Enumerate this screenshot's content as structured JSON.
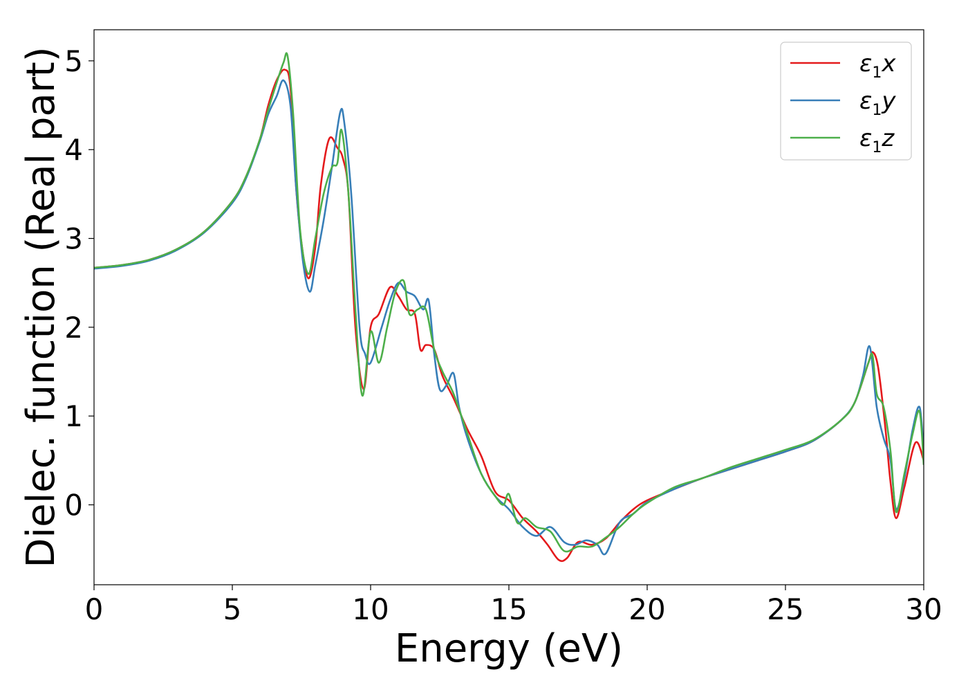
{
  "chart_data": {
    "type": "line",
    "title": "",
    "xlabel": "Energy (eV)",
    "ylabel": "Dielec. function (Real part)",
    "xlim": [
      0,
      30
    ],
    "ylim": [
      -0.9,
      5.35
    ],
    "xticks": [
      0,
      5,
      10,
      15,
      20,
      25,
      30
    ],
    "yticks": [
      0,
      1,
      2,
      3,
      4,
      5
    ],
    "grid": false,
    "legend_position": "top-right",
    "series": [
      {
        "name": "ε1x",
        "symbol": "ε",
        "subscript": "1",
        "suffix": "x",
        "color": "#e41a1c",
        "x": [
          0,
          1,
          2,
          3,
          4,
          5,
          5.5,
          6,
          6.3,
          6.6,
          6.9,
          7.1,
          7.3,
          7.5,
          7.75,
          8,
          8.2,
          8.5,
          8.8,
          9.0,
          9.2,
          9.45,
          9.75,
          10.0,
          10.3,
          10.7,
          11.0,
          11.3,
          11.6,
          11.8,
          12.0,
          12.3,
          12.6,
          13.0,
          13.5,
          14.0,
          14.5,
          15.0,
          15.5,
          16.0,
          16.4,
          16.8,
          17.1,
          17.5,
          18.0,
          18.5,
          19.0,
          19.5,
          20.0,
          21.0,
          22.0,
          23.0,
          24.0,
          25.0,
          26.0,
          27.0,
          27.5,
          28.0,
          28.15,
          28.35,
          28.6,
          28.8,
          29.0,
          29.3,
          29.7,
          30.0
        ],
        "y": [
          2.67,
          2.7,
          2.76,
          2.88,
          3.08,
          3.42,
          3.7,
          4.12,
          4.5,
          4.78,
          4.9,
          4.7,
          3.6,
          2.95,
          2.55,
          2.9,
          3.6,
          4.12,
          4.02,
          3.9,
          3.5,
          2.0,
          1.3,
          2.0,
          2.15,
          2.45,
          2.35,
          2.2,
          2.15,
          1.75,
          1.8,
          1.75,
          1.45,
          1.2,
          0.85,
          0.55,
          0.15,
          0.05,
          -0.15,
          -0.3,
          -0.45,
          -0.62,
          -0.6,
          -0.42,
          -0.45,
          -0.38,
          -0.2,
          -0.05,
          0.05,
          0.18,
          0.3,
          0.4,
          0.5,
          0.6,
          0.72,
          0.95,
          1.15,
          1.6,
          1.72,
          1.55,
          0.9,
          0.25,
          -0.15,
          0.2,
          0.7,
          0.5
        ]
      },
      {
        "name": "ε1y",
        "symbol": "ε",
        "subscript": "1",
        "suffix": "y",
        "color": "#377eb8",
        "x": [
          0,
          1,
          2,
          3,
          4,
          5,
          5.5,
          6,
          6.3,
          6.6,
          6.85,
          7.1,
          7.3,
          7.55,
          7.8,
          8.0,
          8.3,
          8.6,
          8.9,
          9.05,
          9.3,
          9.6,
          9.8,
          10.0,
          10.4,
          10.7,
          11.0,
          11.3,
          11.6,
          11.9,
          12.1,
          12.3,
          12.5,
          12.75,
          13.0,
          13.2,
          13.5,
          14.0,
          14.5,
          15.0,
          15.5,
          16.0,
          16.5,
          17.0,
          17.4,
          17.8,
          18.2,
          18.5,
          19.0,
          19.5,
          20.0,
          21.0,
          22.0,
          23.0,
          24.0,
          25.0,
          26.0,
          27.0,
          27.5,
          27.8,
          28.05,
          28.3,
          28.55,
          28.8,
          29.0,
          29.3,
          29.6,
          29.85,
          30.0
        ],
        "y": [
          2.66,
          2.69,
          2.75,
          2.87,
          3.07,
          3.4,
          3.68,
          4.1,
          4.4,
          4.6,
          4.78,
          4.5,
          3.6,
          2.75,
          2.4,
          2.7,
          3.2,
          3.8,
          4.42,
          4.3,
          3.5,
          2.0,
          1.7,
          1.6,
          2.0,
          2.3,
          2.5,
          2.4,
          2.35,
          2.2,
          2.3,
          1.7,
          1.3,
          1.35,
          1.48,
          1.1,
          0.75,
          0.35,
          0.1,
          -0.05,
          -0.25,
          -0.35,
          -0.25,
          -0.42,
          -0.45,
          -0.4,
          -0.45,
          -0.55,
          -0.2,
          -0.1,
          0.03,
          0.18,
          0.3,
          0.4,
          0.5,
          0.6,
          0.72,
          0.95,
          1.15,
          1.45,
          1.78,
          1.1,
          0.75,
          0.5,
          -0.05,
          0.3,
          0.85,
          1.1,
          0.6
        ]
      },
      {
        "name": "ε1z",
        "symbol": "ε",
        "subscript": "1",
        "suffix": "z",
        "color": "#4daf4a",
        "x": [
          0,
          1,
          2,
          3,
          4,
          5,
          5.5,
          6,
          6.3,
          6.6,
          6.85,
          7.0,
          7.2,
          7.45,
          7.75,
          8.0,
          8.3,
          8.6,
          8.8,
          8.95,
          9.2,
          9.45,
          9.7,
          10.0,
          10.3,
          10.6,
          10.9,
          11.2,
          11.4,
          11.7,
          12.0,
          12.3,
          12.6,
          13.0,
          13.5,
          14.0,
          14.5,
          14.8,
          15.0,
          15.3,
          15.6,
          16.0,
          16.5,
          17.0,
          17.5,
          18.0,
          18.5,
          19.0,
          19.5,
          20.0,
          21.0,
          22.0,
          23.0,
          24.0,
          25.0,
          26.0,
          27.0,
          27.5,
          28.0,
          28.15,
          28.3,
          28.55,
          28.8,
          29.0,
          29.3,
          29.6,
          29.85,
          30.0
        ],
        "y": [
          2.67,
          2.7,
          2.76,
          2.88,
          3.08,
          3.42,
          3.7,
          4.12,
          4.45,
          4.75,
          4.98,
          5.05,
          4.4,
          3.1,
          2.6,
          3.0,
          3.5,
          3.8,
          3.85,
          4.22,
          3.5,
          2.2,
          1.23,
          1.95,
          1.6,
          2.0,
          2.4,
          2.52,
          2.15,
          2.2,
          2.2,
          1.75,
          1.5,
          1.25,
          0.8,
          0.35,
          0.1,
          0.0,
          0.12,
          -0.2,
          -0.15,
          -0.25,
          -0.3,
          -0.52,
          -0.47,
          -0.47,
          -0.37,
          -0.25,
          -0.1,
          0.02,
          0.2,
          0.3,
          0.42,
          0.52,
          0.62,
          0.73,
          0.95,
          1.15,
          1.6,
          1.68,
          1.25,
          1.1,
          0.6,
          -0.08,
          0.35,
          0.8,
          1.05,
          0.45
        ]
      }
    ]
  }
}
